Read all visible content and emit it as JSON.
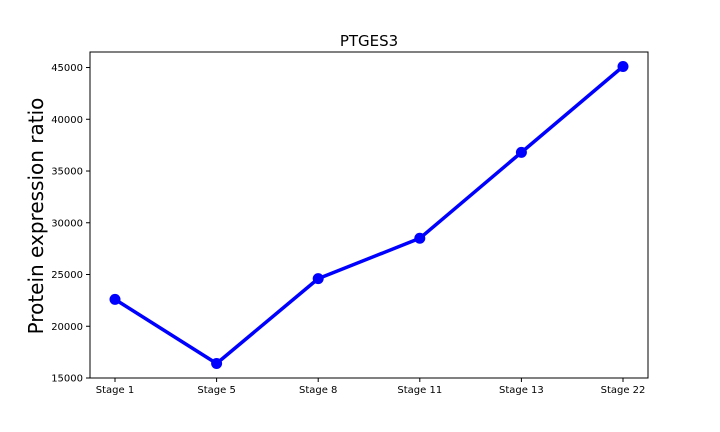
{
  "chart_data": {
    "type": "line",
    "title": "PTGES3",
    "xlabel": "",
    "ylabel": "Protein expression ratio",
    "categories": [
      "Stage 1",
      "Stage 5",
      "Stage 8",
      "Stage 11",
      "Stage 13",
      "Stage 22"
    ],
    "series": [
      {
        "values": [
          22600,
          16400,
          24600,
          28500,
          36800,
          45100
        ],
        "color": "#0000ff",
        "marker": "circle"
      }
    ],
    "ylim": [
      15000,
      46500
    ],
    "yticks": [
      15000,
      20000,
      25000,
      30000,
      35000,
      40000,
      45000
    ],
    "ytick_labels": [
      "15000",
      "20000",
      "25000",
      "30000",
      "35000",
      "40000",
      "45000"
    ],
    "grid": false,
    "legend": "none"
  }
}
